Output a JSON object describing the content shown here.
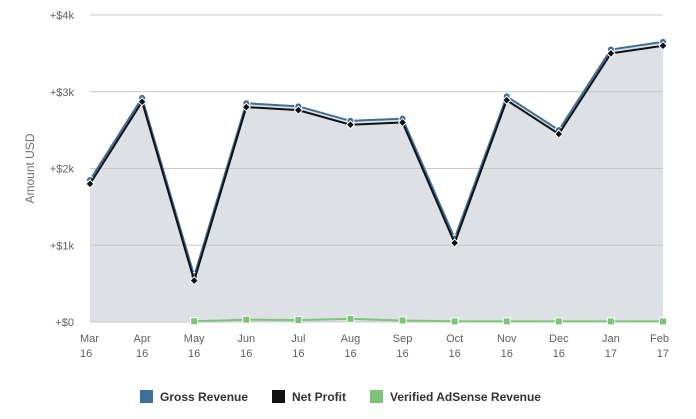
{
  "chart_data": {
    "type": "area",
    "ylabel": "Amount USD",
    "ylim": [
      0,
      4000
    ],
    "yticks": [
      {
        "value": 0,
        "label": "+$0"
      },
      {
        "value": 1000,
        "label": "+$1k"
      },
      {
        "value": 2000,
        "label": "+$2k"
      },
      {
        "value": 3000,
        "label": "+$3k"
      },
      {
        "value": 4000,
        "label": "+$4k"
      }
    ],
    "categories": [
      [
        "Mar",
        "16"
      ],
      [
        "Apr",
        "16"
      ],
      [
        "May",
        "16"
      ],
      [
        "Jun",
        "16"
      ],
      [
        "Jul",
        "16"
      ],
      [
        "Aug",
        "16"
      ],
      [
        "Sep",
        "16"
      ],
      [
        "Oct",
        "16"
      ],
      [
        "Nov",
        "16"
      ],
      [
        "Dec",
        "16"
      ],
      [
        "Jan",
        "17"
      ],
      [
        "Feb",
        "17"
      ]
    ],
    "series": [
      {
        "name": "Gross Revenue",
        "color": "#3d6e9c",
        "marker": "circle",
        "values": [
          1850,
          2920,
          600,
          2850,
          2810,
          2620,
          2650,
          1090,
          2940,
          2500,
          3550,
          3650
        ]
      },
      {
        "name": "Net Profit",
        "color": "#111111",
        "marker": "diamond",
        "values": [
          1800,
          2870,
          540,
          2800,
          2760,
          2570,
          2600,
          1030,
          2890,
          2450,
          3500,
          3600
        ]
      },
      {
        "name": "Verified AdSense Revenue",
        "color": "#7cc576",
        "marker": "square",
        "values": [
          null,
          null,
          10,
          30,
          25,
          40,
          20,
          8,
          8,
          8,
          8,
          8
        ]
      }
    ],
    "area_fill": "#dde0e5",
    "grid": true,
    "legend_position": "bottom"
  }
}
